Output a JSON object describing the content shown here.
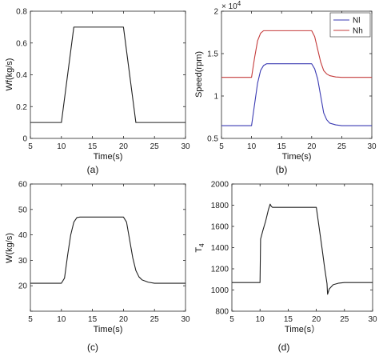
{
  "chart_data": [
    {
      "id": "a",
      "type": "line",
      "caption": "(a)",
      "xlabel": "Time(s)",
      "ylabel": "Wf(kg/s)",
      "xlim": [
        5,
        30
      ],
      "ylim": [
        0,
        0.8
      ],
      "xticks": [
        5,
        10,
        15,
        20,
        25,
        30
      ],
      "yticks": [
        0,
        0.2,
        0.4,
        0.6,
        0.8
      ],
      "ytick_labels": [
        "0",
        "0.2",
        "0.4",
        "0.6",
        "0.8"
      ],
      "exponent": "",
      "series": [
        {
          "color": "#222222",
          "x": [
            5,
            10,
            12,
            20,
            22,
            30
          ],
          "y": [
            0.1,
            0.1,
            0.7,
            0.7,
            0.1,
            0.1
          ]
        }
      ]
    },
    {
      "id": "b",
      "type": "line",
      "caption": "(b)",
      "xlabel": "Time(s)",
      "ylabel": "Speed(rpm)",
      "xlim": [
        5,
        30
      ],
      "ylim": [
        0.5,
        2.0
      ],
      "xticks": [
        5,
        10,
        15,
        20,
        25,
        30
      ],
      "yticks": [
        0.5,
        1.0,
        1.5,
        2.0
      ],
      "ytick_labels": [
        "0.5",
        "1",
        "1.5",
        "2"
      ],
      "exponent": "× 10",
      "exponent_power": "4",
      "legend": "top-right",
      "series": [
        {
          "name": "Nl",
          "color": "#3b3bb3",
          "x": [
            5,
            10,
            10.5,
            11,
            11.5,
            12,
            12.5,
            20,
            20.5,
            21,
            21.5,
            22,
            22.5,
            23,
            24,
            25,
            30
          ],
          "y": [
            0.65,
            0.65,
            0.9,
            1.15,
            1.3,
            1.36,
            1.38,
            1.38,
            1.32,
            1.2,
            1.0,
            0.8,
            0.72,
            0.68,
            0.66,
            0.65,
            0.65
          ]
        },
        {
          "name": "Nh",
          "color": "#c43b3b",
          "x": [
            5,
            10,
            10.5,
            11,
            11.5,
            12,
            20,
            20.5,
            21,
            21.5,
            22,
            22.5,
            23,
            24,
            25,
            30
          ],
          "y": [
            1.22,
            1.22,
            1.45,
            1.65,
            1.74,
            1.77,
            1.77,
            1.7,
            1.55,
            1.4,
            1.3,
            1.26,
            1.24,
            1.225,
            1.22,
            1.22
          ]
        }
      ]
    },
    {
      "id": "c",
      "type": "line",
      "caption": "(c)",
      "xlabel": "Time(s)",
      "ylabel": "W(kg/s)",
      "xlim": [
        5,
        30
      ],
      "ylim": [
        10,
        60
      ],
      "xticks": [
        5,
        10,
        15,
        20,
        25,
        30
      ],
      "yticks": [
        10,
        20,
        30,
        40,
        50,
        60
      ],
      "ytick_labels": [
        "",
        "20",
        "30",
        "40",
        "50",
        "60"
      ],
      "exponent": "",
      "series": [
        {
          "color": "#222222",
          "x": [
            5,
            10,
            10.5,
            11,
            11.5,
            12,
            12.5,
            13,
            20,
            20.5,
            21,
            21.5,
            22,
            22.5,
            23,
            24,
            25,
            30
          ],
          "y": [
            21,
            21,
            23,
            32,
            40,
            45,
            46.8,
            47,
            47,
            45,
            38,
            31,
            26,
            23.5,
            22.3,
            21.4,
            21,
            21
          ]
        }
      ]
    },
    {
      "id": "d",
      "type": "line",
      "caption": "(d)",
      "xlabel": "Time(s）",
      "ylabel": "T",
      "ylabel_sub": "4",
      "xlim": [
        5,
        30
      ],
      "ylim": [
        800,
        2000
      ],
      "xticks": [
        5,
        10,
        15,
        20,
        25,
        30
      ],
      "yticks": [
        800,
        1000,
        1200,
        1400,
        1600,
        1800,
        2000
      ],
      "ytick_labels": [
        "800",
        "1000",
        "1200",
        "1400",
        "1600",
        "1800",
        "2000"
      ],
      "exponent": "",
      "series": [
        {
          "color": "#222222",
          "x": [
            5,
            10,
            10.1,
            10.5,
            11,
            11.5,
            11.8,
            12,
            12.2,
            20,
            20.5,
            21,
            21.5,
            21.9,
            22,
            22.3,
            23,
            24,
            25,
            30
          ],
          "y": [
            1070,
            1070,
            1480,
            1560,
            1650,
            1760,
            1810,
            1790,
            1780,
            1780,
            1590,
            1400,
            1200,
            1060,
            960,
            1010,
            1050,
            1065,
            1070,
            1070
          ]
        }
      ]
    }
  ]
}
